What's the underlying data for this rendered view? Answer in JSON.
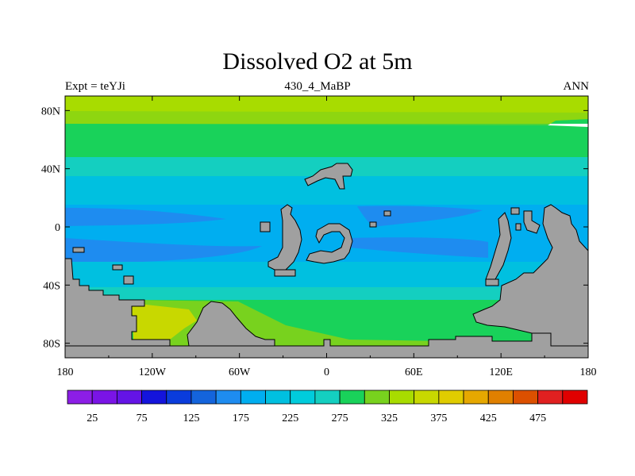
{
  "title": "Dissolved O2 at 5m",
  "subtitle_left": "Expt = teYJi",
  "subtitle_center": "430_4_MaBP",
  "subtitle_right": "ANN",
  "colors": {
    "land": "#a0a0a0",
    "bands": [
      "#a8dc00",
      "#19d25a",
      "#78d21e",
      "#14cfc0",
      "#00c0e0",
      "#00aef0",
      "#1e8cf0"
    ]
  },
  "chart_data": {
    "type": "heatmap",
    "title": "Dissolved O2 at 5m",
    "variable": "Dissolved O2",
    "depth": "5m",
    "experiment": "teYJi",
    "period": "430_4_MaBP",
    "season": "ANN",
    "x_ticks": [
      "180",
      "120W",
      "60W",
      "0",
      "60E",
      "120E",
      "180"
    ],
    "y_ticks": [
      "80N",
      "40N",
      "0",
      "40S",
      "80S"
    ],
    "xlim": [
      -180,
      180
    ],
    "ylim": [
      -90,
      90
    ],
    "colorbar": {
      "labels": [
        "25",
        "75",
        "125",
        "175",
        "225",
        "275",
        "325",
        "375",
        "425",
        "475"
      ],
      "colors": [
        "#8c1ee6",
        "#7a14e6",
        "#6414e6",
        "#1414dc",
        "#0a3cdc",
        "#1464dc",
        "#1e8cf0",
        "#00aef0",
        "#00c0e0",
        "#00ccdc",
        "#14cfc0",
        "#19d25a",
        "#78d21e",
        "#a8dc00",
        "#c8d800",
        "#e0cc00",
        "#e6a800",
        "#e08000",
        "#dc5000",
        "#e02020",
        "#e00000"
      ]
    }
  }
}
